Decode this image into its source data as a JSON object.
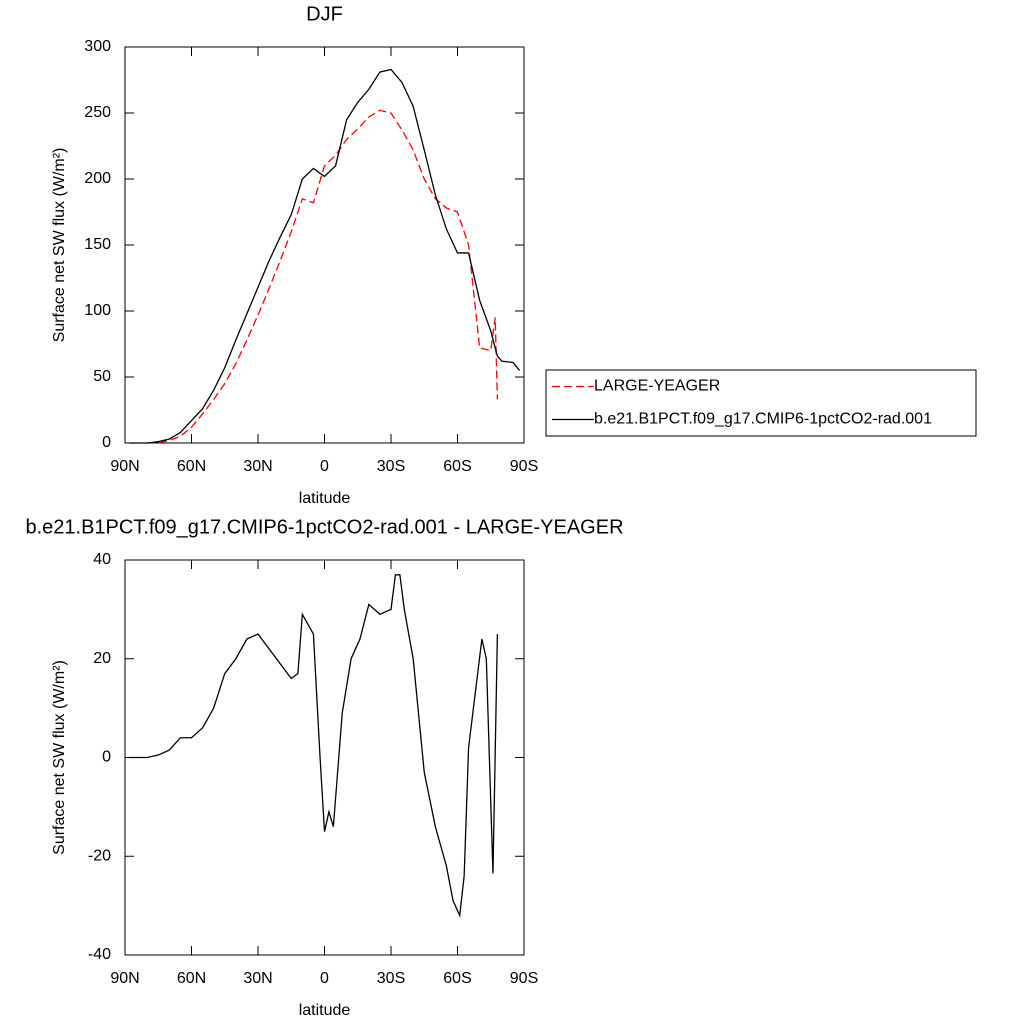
{
  "chart_data": [
    {
      "type": "line",
      "title": "DJF",
      "x_label": "latitude",
      "y_label": "Surface net SW flux (W/m²)",
      "xlim": [
        90,
        -90
      ],
      "xticks": [
        {
          "value": 90,
          "label": "90N"
        },
        {
          "value": 60,
          "label": "60N"
        },
        {
          "value": 30,
          "label": "30N"
        },
        0,
        {
          "value": -30,
          "label": "30S"
        },
        {
          "value": -60,
          "label": "60S"
        },
        {
          "value": -90,
          "label": "90S"
        }
      ],
      "ylim": [
        0,
        300
      ],
      "yticks": [
        0,
        50,
        100,
        150,
        200,
        250,
        300
      ],
      "legend": "right",
      "x": [
        88,
        85,
        80,
        75,
        70,
        65,
        60,
        55,
        50,
        45,
        40,
        35,
        30,
        25,
        20,
        15,
        10,
        5,
        0,
        -5,
        -10,
        -15,
        -20,
        -25,
        -30,
        -35,
        -40,
        -45,
        -50,
        -55,
        -60,
        -65,
        -70,
        -75,
        -77,
        -78,
        -80,
        -85,
        -88
      ],
      "series": [
        {
          "name": "LARGE-YEAGER",
          "color": "#ff0000",
          "linestyle": "dashed",
          "values": [
            null,
            null,
            0,
            0,
            2,
            5,
            12,
            22,
            33,
            45,
            60,
            78,
            97,
            117,
            138,
            160,
            185,
            182,
            210,
            218,
            230,
            238,
            247,
            252,
            250,
            237,
            222,
            200,
            185,
            178,
            175,
            150,
            72,
            70,
            95,
            33,
            null,
            null,
            null
          ]
        },
        {
          "name": "b.e21.B1PCT.f09_g17.CMIP6-1pctCO2-rad.001",
          "color": "#000000",
          "linestyle": "solid",
          "values": [
            0,
            0,
            0,
            1,
            3,
            8,
            17,
            26,
            40,
            57,
            78,
            98,
            118,
            138,
            156,
            173,
            200,
            208,
            202,
            210,
            245,
            258,
            268,
            281,
            283,
            273,
            255,
            222,
            188,
            162,
            144,
            144,
            108,
            85,
            72,
            66,
            62,
            61,
            55
          ]
        }
      ]
    },
    {
      "type": "line",
      "title": "b.e21.B1PCT.f09_g17.CMIP6-1pctCO2-rad.001 - LARGE-YEAGER",
      "x_label": "latitude",
      "y_label": "Surface net SW flux (W/m²)",
      "xlim": [
        90,
        -90
      ],
      "xticks": [
        {
          "value": 90,
          "label": "90N"
        },
        {
          "value": 60,
          "label": "60N"
        },
        {
          "value": 30,
          "label": "30N"
        },
        0,
        {
          "value": -30,
          "label": "30S"
        },
        {
          "value": -60,
          "label": "60S"
        },
        {
          "value": -90,
          "label": "90S"
        }
      ],
      "ylim": [
        -40,
        40
      ],
      "yticks": [
        40,
        20,
        0,
        -20,
        -40
      ],
      "x": [
        88,
        85,
        80,
        75,
        70,
        65,
        60,
        55,
        50,
        45,
        40,
        35,
        30,
        25,
        20,
        15,
        12,
        10,
        5,
        2,
        0,
        -2,
        -4,
        -8,
        -12,
        -16,
        -20,
        -25,
        -30,
        -32,
        -34,
        -36,
        -40,
        -45,
        -50,
        -55,
        -58,
        -61,
        -63,
        -65,
        -68,
        -71,
        -73,
        -76,
        -78
      ],
      "series": [
        {
          "color": "#000000",
          "linestyle": "solid",
          "values": [
            0,
            0,
            0,
            0.5,
            1.5,
            4,
            4,
            6,
            10,
            17,
            20,
            24,
            25,
            22,
            19,
            16,
            17,
            29,
            25,
            0,
            -15,
            -11,
            -14,
            9,
            20,
            24,
            31,
            29,
            30,
            37,
            37,
            30,
            20,
            -3,
            -14,
            -22,
            -29,
            -32,
            -24,
            2,
            13,
            24,
            20,
            -23.5,
            25
          ]
        }
      ]
    }
  ]
}
